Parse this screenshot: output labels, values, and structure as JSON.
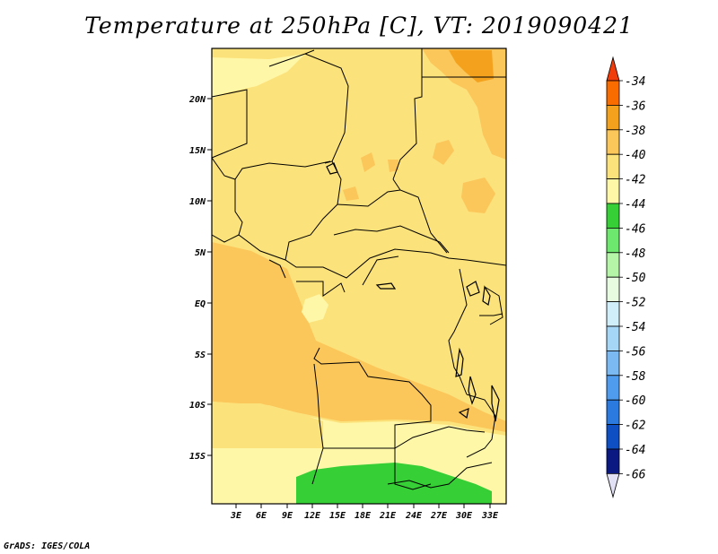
{
  "title": "Temperature at 250hPa [C], VT: 2019090421",
  "credit": "GrADS: IGES/COLA",
  "map": {
    "lat_labels": [
      "20N",
      "15N",
      "10N",
      "5N",
      "EQ",
      "5S",
      "10S",
      "15S"
    ],
    "lon_labels": [
      "3E",
      "6E",
      "9E",
      "12E",
      "15E",
      "18E",
      "21E",
      "24E",
      "27E",
      "30E",
      "33E"
    ],
    "fill_levels": [
      {
        "range": "-42 to -40",
        "color": "#fce27a"
      },
      {
        "range": "-40 to -38",
        "color": "#fbc65a"
      },
      {
        "range": "-44 to -42",
        "color": "#fff7a8"
      },
      {
        "range": "-46 to -44",
        "color": "#36cf36"
      },
      {
        "range": "-38 to -36",
        "color": "#f4a21e"
      }
    ]
  },
  "colorbar": {
    "labels": [
      "-34",
      "-36",
      "-38",
      "-40",
      "-42",
      "-44",
      "-46",
      "-48",
      "-50",
      "-52",
      "-54",
      "-56",
      "-58",
      "-60",
      "-62",
      "-64",
      "-66"
    ],
    "colors": [
      "#f03c0a",
      "#f96c00",
      "#f4a21e",
      "#fbc65a",
      "#fce27a",
      "#fff7a8",
      "#36cf36",
      "#6ee76e",
      "#b5f5a7",
      "#e7fbe1",
      "#cfeefa",
      "#a6d6f6",
      "#7ab9f2",
      "#4f9cee",
      "#2b7ae0",
      "#0f4fc4",
      "#0b1a82",
      "#e2e0f4"
    ]
  }
}
